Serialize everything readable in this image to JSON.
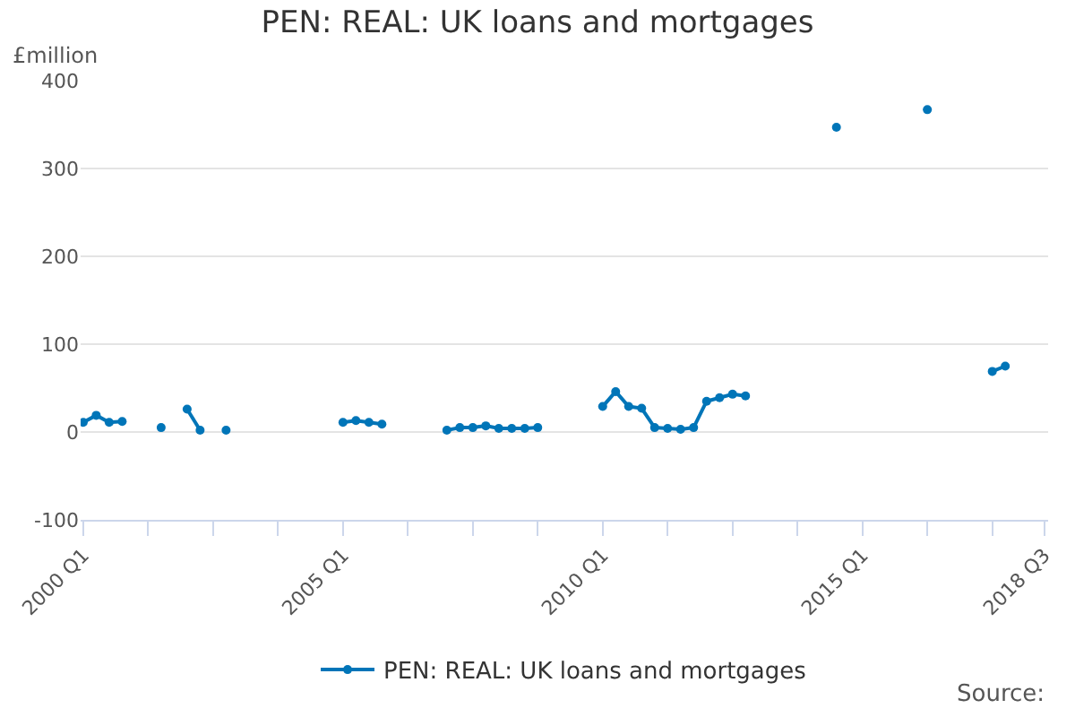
{
  "chart_data": {
    "type": "line",
    "title": "PEN: REAL: UK loans and mortgages",
    "ylabel": "£million",
    "categories": [
      "2000 Q1",
      null,
      null,
      null,
      null,
      null,
      null,
      null,
      null,
      null,
      null,
      null,
      null,
      null,
      null,
      null,
      null,
      null,
      null,
      null,
      "2005 Q1",
      null,
      null,
      null,
      null,
      null,
      null,
      null,
      null,
      null,
      null,
      null,
      null,
      null,
      null,
      null,
      null,
      null,
      null,
      null,
      "2010 Q1",
      null,
      null,
      null,
      null,
      null,
      null,
      null,
      null,
      null,
      null,
      null,
      null,
      null,
      null,
      null,
      null,
      null,
      null,
      null,
      "2015 Q1",
      null,
      null,
      null,
      null,
      null,
      null,
      null,
      null,
      null,
      null,
      null,
      null,
      null,
      "2018 Q3"
    ],
    "series": [
      {
        "name": "PEN: REAL: UK loans and mortgages",
        "color": "#0075b8",
        "values": [
          11,
          19,
          11,
          12,
          null,
          null,
          5,
          null,
          26,
          2,
          null,
          2,
          null,
          null,
          null,
          null,
          null,
          null,
          null,
          null,
          11,
          13,
          11,
          9,
          null,
          null,
          null,
          null,
          2,
          5,
          5,
          7,
          4,
          4,
          4,
          5,
          null,
          null,
          null,
          null,
          29,
          46,
          29,
          27,
          5,
          4,
          3,
          5,
          35,
          39,
          43,
          41,
          null,
          null,
          null,
          null,
          null,
          null,
          347,
          null,
          null,
          null,
          null,
          null,
          null,
          367,
          null,
          null,
          null,
          null,
          69,
          75,
          null,
          null,
          null
        ]
      }
    ],
    "ylim": [
      -100,
      400
    ],
    "yticks": [
      -100,
      0,
      100,
      200,
      300,
      400
    ],
    "grid": "y",
    "legend": "bottom",
    "marker": "circle",
    "line_style": "solid",
    "annotations": [
      "Source:"
    ]
  }
}
